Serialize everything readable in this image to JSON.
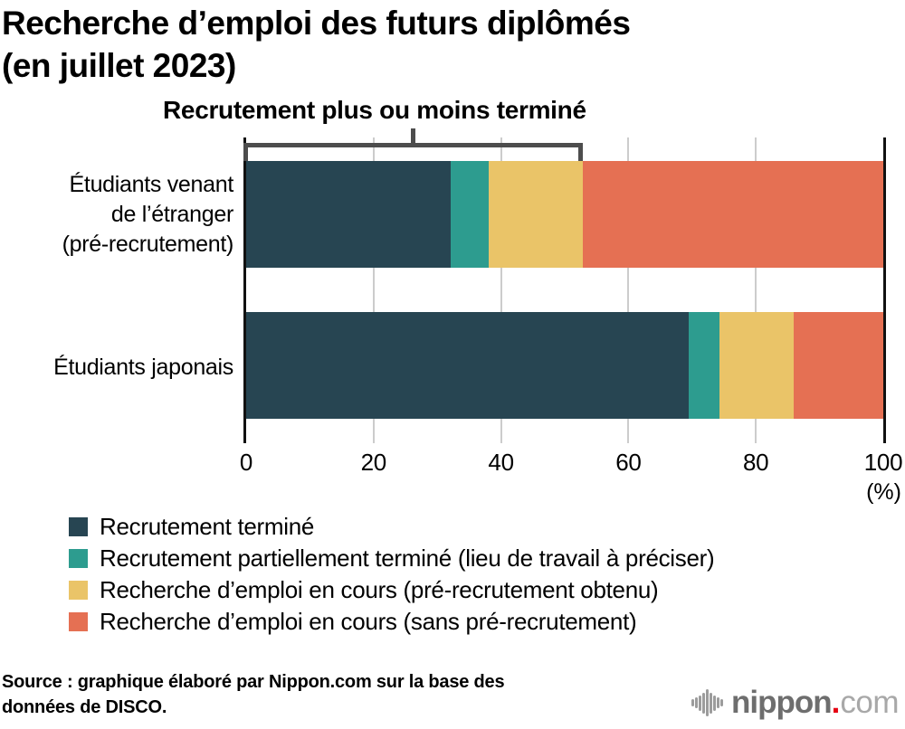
{
  "title": {
    "lines": [
      "Recherche d’emploi des futurs diplômés",
      "(en juillet 2023)"
    ]
  },
  "chart_data": {
    "type": "bar",
    "orientation": "horizontal",
    "stacked": true,
    "title": "Recherche d’emploi des futurs diplômés (en juillet 2023)",
    "categories": [
      "Étudiants venant de l’étranger (pré-recrutement)",
      "Étudiants japonais"
    ],
    "categories_display": [
      "Étudiants venant\nde l’étranger\n(pré-recrutement)",
      "Étudiants japonais"
    ],
    "series": [
      {
        "name": "Recrutement terminé",
        "color": "#274552",
        "values": [
          32.1,
          69.5
        ]
      },
      {
        "name": "Recrutement partiellement terminé (lieu de travail à préciser)",
        "color": "#2d9c8f",
        "values": [
          6.0,
          4.8
        ]
      },
      {
        "name": "Recherche d’emploi en cours (pré-recrutement obtenu)",
        "color": "#eac468",
        "values": [
          14.8,
          11.7
        ]
      },
      {
        "name": "Recherche d’emploi en cours (sans pré-recrutement)",
        "color": "#e57053",
        "values": [
          47.1,
          14.0
        ]
      }
    ],
    "xlim": [
      0,
      100
    ],
    "x_ticks": [
      0,
      20,
      40,
      60,
      80,
      100
    ],
    "x_unit": "(%)",
    "grid": true,
    "legend_position": "bottom",
    "annotation": {
      "label": "Recrutement plus ou moins terminé",
      "category_index": 0,
      "series_covered": [
        0,
        1,
        2
      ]
    }
  },
  "source": {
    "text": "Source : graphique élaboré par Nippon.com sur la base des\ndonnées de DISCO."
  },
  "logo": {
    "word": "nippon",
    "dot": ".",
    "suffix": "com"
  }
}
